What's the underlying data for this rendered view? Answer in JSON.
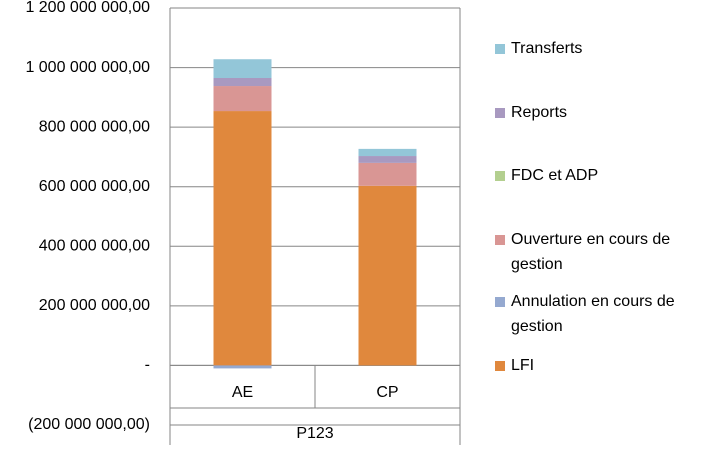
{
  "chart_data": {
    "type": "stacked_bar",
    "categories": [
      "AE",
      "CP"
    ],
    "group_label": "P123",
    "series": [
      {
        "name": "LFI",
        "color": "#e0883d",
        "values": [
          854000000,
          603000000
        ]
      },
      {
        "name": "Annulation en cours de gestion",
        "color": "#95a9d0",
        "values": [
          -10000000,
          0
        ]
      },
      {
        "name": "Ouverture en cours de gestion",
        "color": "#d99694",
        "values": [
          84000000,
          77000000
        ]
      },
      {
        "name": "FDC et ADP",
        "color": "#b3cf8f",
        "values": [
          0,
          0
        ]
      },
      {
        "name": "Reports",
        "color": "#a899c0",
        "values": [
          27000000,
          23000000
        ]
      },
      {
        "name": "Transferts",
        "color": "#93c6d8",
        "values": [
          63000000,
          24000000
        ]
      }
    ],
    "ylim": [
      -200000000,
      1200000000
    ],
    "yticks": [
      {
        "value": -200000000,
        "label": "(200 000 000,00)"
      },
      {
        "value": 0,
        "label": "-"
      },
      {
        "value": 200000000,
        "label": "200 000 000,00"
      },
      {
        "value": 400000000,
        "label": "400 000 000,00"
      },
      {
        "value": 600000000,
        "label": "600 000 000,00"
      },
      {
        "value": 800000000,
        "label": "800 000 000,00"
      },
      {
        "value": 1000000000,
        "label": "1 000 000 000,00"
      },
      {
        "value": 1200000000,
        "label": "1 200 000 000,00"
      }
    ],
    "grid": true,
    "legend": "right"
  }
}
